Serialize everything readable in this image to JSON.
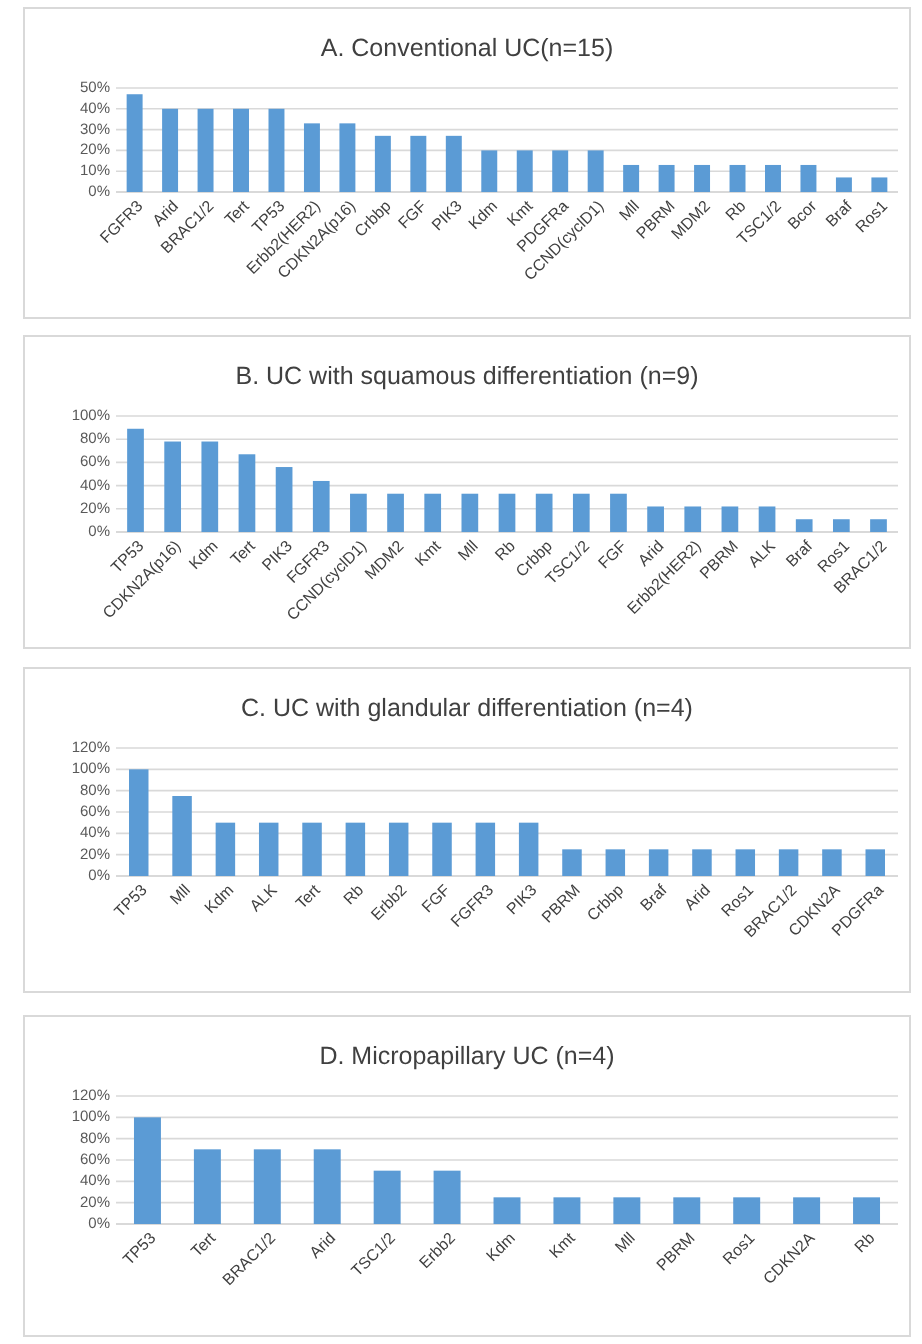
{
  "chart_data": [
    {
      "type": "bar",
      "title": "A. Conventional UC(n=15)",
      "categories": [
        "FGFR3",
        "Arid",
        "BRAC1/2",
        "Tert",
        "TP53",
        "Erbb2(HER2)",
        "CDKN2A(p16)",
        "Crbbp",
        "FGF",
        "PIK3",
        "Kdm",
        "Kmt",
        "PDGFRa",
        "CCND(cyclD1)",
        "Mll",
        "PBRM",
        "MDM2",
        "Rb",
        "TSC1/2",
        "Bcor",
        "Braf",
        "Ros1"
      ],
      "values": [
        47,
        40,
        40,
        40,
        40,
        33,
        33,
        27,
        27,
        27,
        20,
        20,
        20,
        20,
        13,
        13,
        13,
        13,
        13,
        13,
        7,
        7
      ],
      "color": "#5b9bd5",
      "ylim": [
        0,
        50
      ],
      "yticks": [
        {
          "value": 0,
          "label": "0%"
        },
        {
          "value": 10,
          "label": "10%"
        },
        {
          "value": 20,
          "label": "20%"
        },
        {
          "value": 30,
          "label": "30%"
        },
        {
          "value": 40,
          "label": "40%"
        },
        {
          "value": 50,
          "label": "50%"
        }
      ],
      "grid": "y"
    },
    {
      "type": "bar",
      "title": "B. UC with squamous differentiation (n=9)",
      "categories": [
        "TP53",
        "CDKN2A(p16)",
        "Kdm",
        "Tert",
        "PIK3",
        "FGFR3",
        "CCND(cyclD1)",
        "MDM2",
        "Kmt",
        "Mll",
        "Rb",
        "Crbbp",
        "TSC1/2",
        "FGF",
        "Arid",
        "Erbb2(HER2)",
        "PBRM",
        "ALK",
        "Braf",
        "Ros1",
        "BRAC1/2"
      ],
      "values": [
        89,
        78,
        78,
        67,
        56,
        44,
        33,
        33,
        33,
        33,
        33,
        33,
        33,
        33,
        22,
        22,
        22,
        22,
        11,
        11,
        11
      ],
      "color": "#5b9bd5",
      "ylim": [
        0,
        100
      ],
      "yticks": [
        {
          "value": 0,
          "label": "0%"
        },
        {
          "value": 20,
          "label": "20%"
        },
        {
          "value": 40,
          "label": "40%"
        },
        {
          "value": 60,
          "label": "60%"
        },
        {
          "value": 80,
          "label": "80%"
        },
        {
          "value": 100,
          "label": "100%"
        }
      ],
      "grid": "y"
    },
    {
      "type": "bar",
      "title": "C. UC with glandular differentiation (n=4)",
      "categories": [
        "TP53",
        "Mll",
        "Kdm",
        "ALK",
        "Tert",
        "Rb",
        "Erbb2",
        "FGF",
        "FGFR3",
        "PIK3",
        "PBRM",
        "Crbbp",
        "Braf",
        "Arid",
        "Ros1",
        "BRAC1/2",
        "CDKN2A",
        "PDGFRa"
      ],
      "values": [
        100,
        75,
        50,
        50,
        50,
        50,
        50,
        50,
        50,
        50,
        25,
        25,
        25,
        25,
        25,
        25,
        25,
        25
      ],
      "color": "#5b9bd5",
      "ylim": [
        0,
        120
      ],
      "yticks": [
        {
          "value": 0,
          "label": "0%"
        },
        {
          "value": 20,
          "label": "20%"
        },
        {
          "value": 40,
          "label": "40%"
        },
        {
          "value": 60,
          "label": "60%"
        },
        {
          "value": 80,
          "label": "80%"
        },
        {
          "value": 100,
          "label": "100%"
        },
        {
          "value": 120,
          "label": "120%"
        }
      ],
      "grid": "y"
    },
    {
      "type": "bar",
      "title": "D. Micropapillary UC (n=4)",
      "categories": [
        "TP53",
        "Tert",
        "BRAC1/2",
        "Arid",
        "TSC1/2",
        "Erbb2",
        "Kdm",
        "Kmt",
        "Mll",
        "PBRM",
        "Ros1",
        "CDKN2A",
        "Rb"
      ],
      "values": [
        100,
        70,
        70,
        70,
        50,
        50,
        25,
        25,
        25,
        25,
        25,
        25,
        25
      ],
      "color": "#5b9bd5",
      "ylim": [
        0,
        120
      ],
      "yticks": [
        {
          "value": 0,
          "label": "0%"
        },
        {
          "value": 20,
          "label": "20%"
        },
        {
          "value": 40,
          "label": "40%"
        },
        {
          "value": 60,
          "label": "60%"
        },
        {
          "value": 80,
          "label": "80%"
        },
        {
          "value": 100,
          "label": "100%"
        },
        {
          "value": 120,
          "label": "120%"
        }
      ],
      "grid": "y"
    }
  ]
}
